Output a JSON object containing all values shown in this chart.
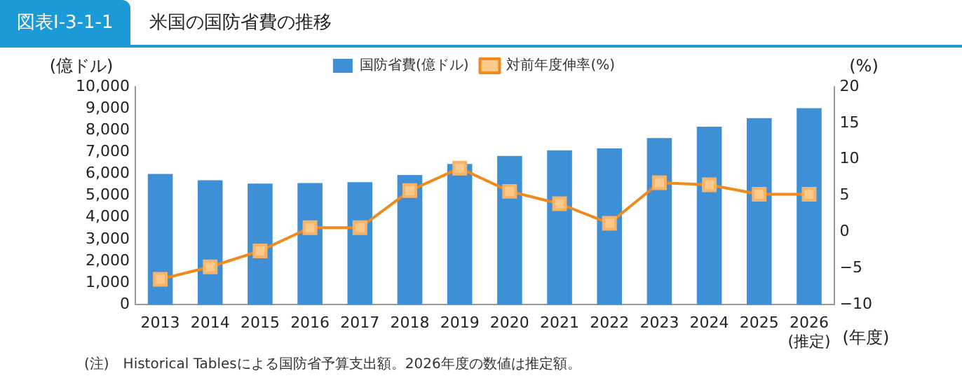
{
  "chart_data": {
    "type": "bar",
    "title": "米国の国防省費の推移",
    "xlabel": "(年度)",
    "ylabel": "(億ドル)",
    "y2label": "(%)",
    "annotations": [
      "図表Ⅰ-3-1-1",
      "(注)　Historical Tablesによる国防省予算支出額。2026年度の数値は推定額。"
    ],
    "categories": [
      "2013",
      "2014",
      "2015",
      "2016",
      "2017",
      "2018",
      "2019",
      "2020",
      "2021",
      "2022",
      "2023",
      "2024",
      "2025",
      "2026\n(推定)"
    ],
    "series": [
      {
        "name": "国防省費(億ドル)",
        "color": "#3f8fd6",
        "values": [
          6000,
          5710,
          5560,
          5580,
          5620,
          5950,
          6460,
          6830,
          7080,
          7170,
          7650,
          8170,
          8560,
          9020
        ]
      },
      {
        "name": "対前年度伸率(%)",
        "type": "line",
        "axis": "y2",
        "color": "#f08a1c",
        "marker": "square",
        "values": [
          -6.5,
          -4.8,
          -2.6,
          0.6,
          0.6,
          5.7,
          8.8,
          5.6,
          3.9,
          1.2,
          6.8,
          6.5,
          5.2,
          5.2
        ]
      }
    ],
    "ylim": [
      0,
      10000
    ],
    "yticks": [
      0,
      {
        "value": 1000,
        "label": "1,000"
      },
      {
        "value": 2000,
        "label": "2,000"
      },
      {
        "value": 3000,
        "label": "3,000"
      },
      {
        "value": 4000,
        "label": "4,000"
      },
      {
        "value": 5000,
        "label": "5,000"
      },
      {
        "value": 6000,
        "label": "6,000"
      },
      {
        "value": 7000,
        "label": "7,000"
      },
      {
        "value": 8000,
        "label": "8,000"
      },
      {
        "value": 9000,
        "label": "9,000"
      },
      {
        "value": 10000,
        "label": "10,000"
      }
    ],
    "y2lim": [
      -10,
      20
    ],
    "y2ticks": [
      {
        "value": -10,
        "label": "−10"
      },
      {
        "value": -5,
        "label": "−5"
      },
      0,
      5,
      10,
      15,
      20
    ],
    "legend": "top",
    "grid": false
  }
}
